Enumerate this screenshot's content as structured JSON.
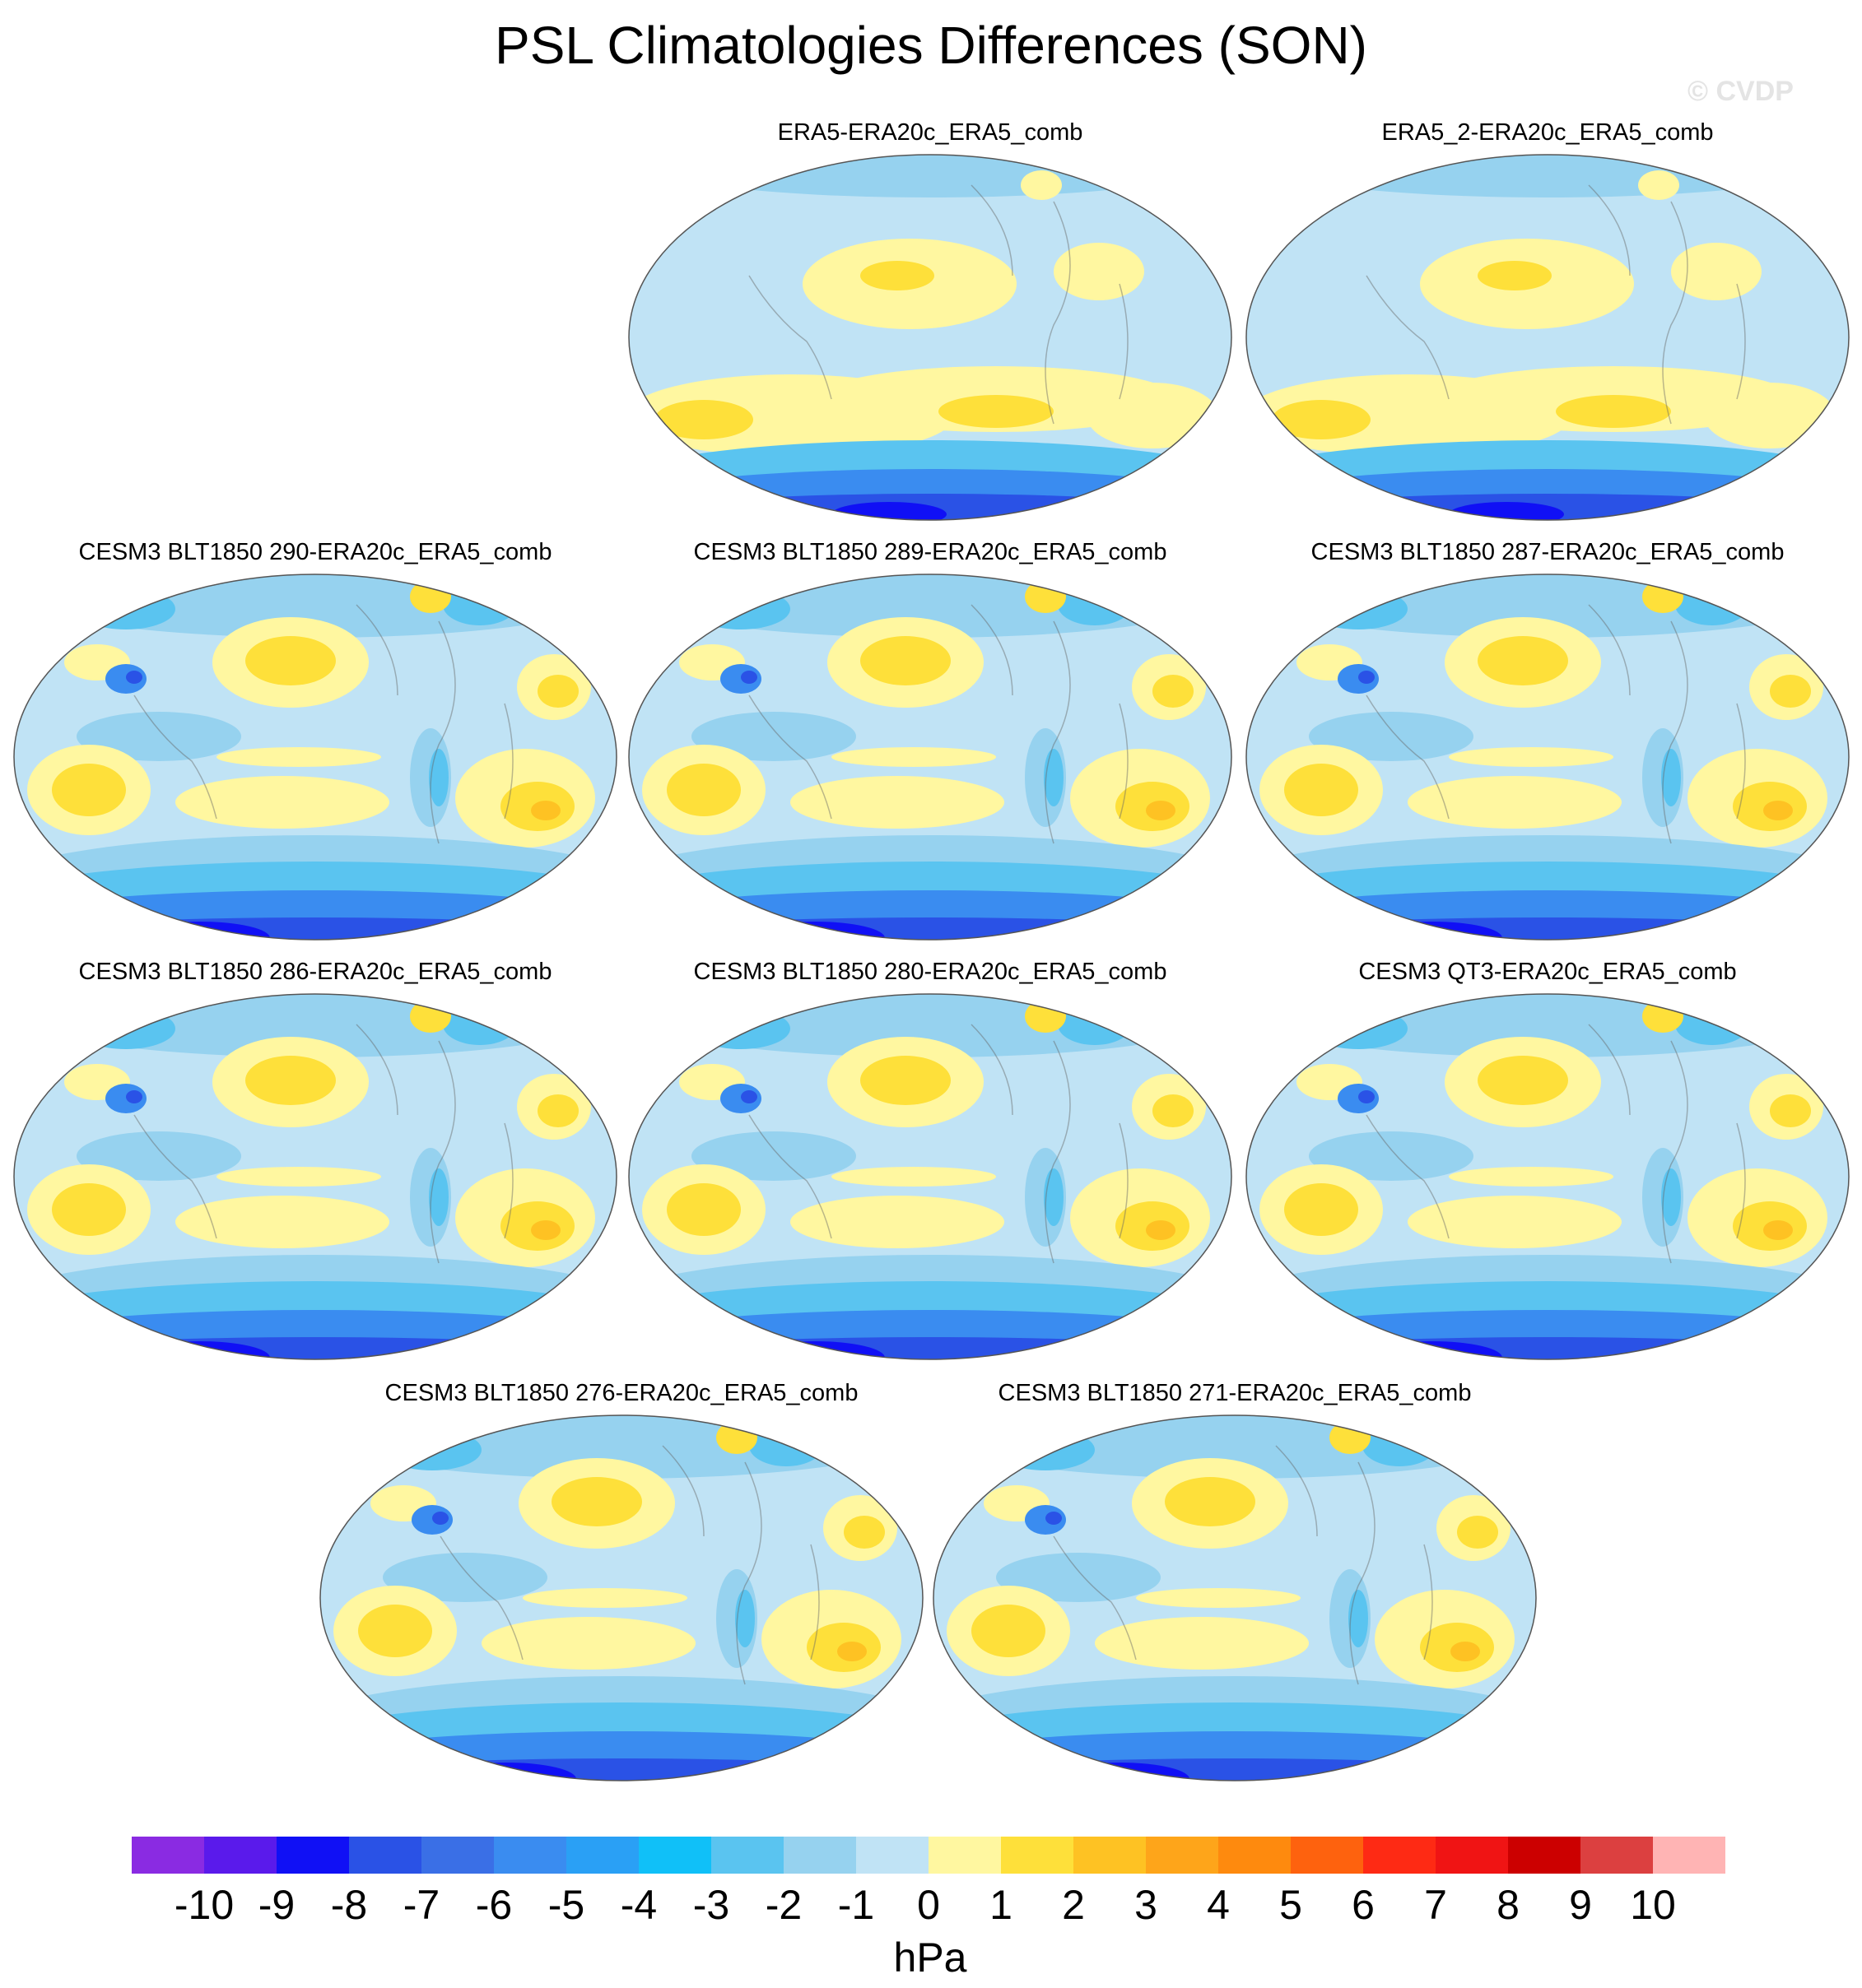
{
  "title": "PSL Climatologies Differences (SON)",
  "watermark": "© CVDP",
  "panels": [
    {
      "title": "ERA5-ERA20c_ERA5_comb",
      "variant": "obs"
    },
    {
      "title": "ERA5_2-ERA20c_ERA5_comb",
      "variant": "obs"
    },
    {
      "title": "CESM3 BLT1850 290-ERA20c_ERA5_comb",
      "variant": "model"
    },
    {
      "title": "CESM3 BLT1850 289-ERA20c_ERA5_comb",
      "variant": "model"
    },
    {
      "title": "CESM3 BLT1850 287-ERA20c_ERA5_comb",
      "variant": "model"
    },
    {
      "title": "CESM3 BLT1850 286-ERA20c_ERA5_comb",
      "variant": "model"
    },
    {
      "title": "CESM3 BLT1850 280-ERA20c_ERA5_comb",
      "variant": "model"
    },
    {
      "title": "CESM3 QT3-ERA20c_ERA5_comb",
      "variant": "model"
    },
    {
      "title": "CESM3 BLT1850 276-ERA20c_ERA5_comb",
      "variant": "model"
    },
    {
      "title": "CESM3 BLT1850 271-ERA20c_ERA5_comb",
      "variant": "model"
    }
  ],
  "colorbar": {
    "unit": "hPa",
    "ticks": [
      "-10",
      "-9",
      "-8",
      "-7",
      "-6",
      "-5",
      "-4",
      "-3",
      "-2",
      "-1",
      "0",
      "1",
      "2",
      "3",
      "4",
      "5",
      "6",
      "7",
      "8",
      "9",
      "10"
    ],
    "colors": [
      "#8a2be2",
      "#5a1aeb",
      "#1010f5",
      "#2a52e6",
      "#3a6fe6",
      "#3a8cf0",
      "#2aa0f5",
      "#10c0f8",
      "#5ac4f0",
      "#96d2ef",
      "#c0e3f5",
      "#fff7a0",
      "#fee03a",
      "#fec223",
      "#fea51a",
      "#fe8a0e",
      "#fe620e",
      "#fe2a14",
      "#f01414",
      "#cc0000",
      "#dc4040",
      "#ffb4b4"
    ]
  }
}
